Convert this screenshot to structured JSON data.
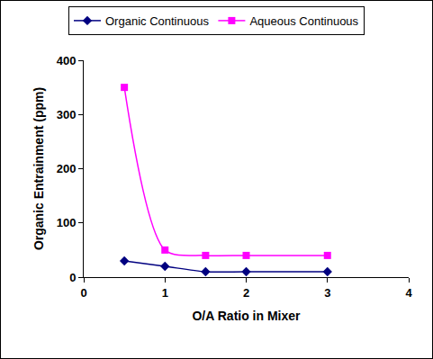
{
  "chart_data": {
    "type": "line",
    "x_label": "O/A Ratio in Mixer",
    "y_label": "Organic Entrainment (ppm)",
    "x": [
      0.5,
      1,
      1.5,
      2,
      3
    ],
    "series": [
      {
        "name": "Organic Continuous",
        "color": "#000080",
        "marker": "diamond",
        "line_style": "smooth",
        "values": [
          30,
          20,
          10,
          10,
          10
        ]
      },
      {
        "name": "Aqueous Continuous",
        "color": "#FF00FF",
        "marker": "square",
        "line_style": "smooth",
        "values": [
          350,
          50,
          40,
          40,
          40
        ]
      }
    ],
    "xlim": [
      0,
      4
    ],
    "xticks": [
      0,
      1,
      2,
      3,
      4
    ],
    "ylim": [
      0,
      400
    ],
    "yticks": [
      0,
      100,
      200,
      300,
      400
    ],
    "grid": false,
    "legend": "top"
  }
}
